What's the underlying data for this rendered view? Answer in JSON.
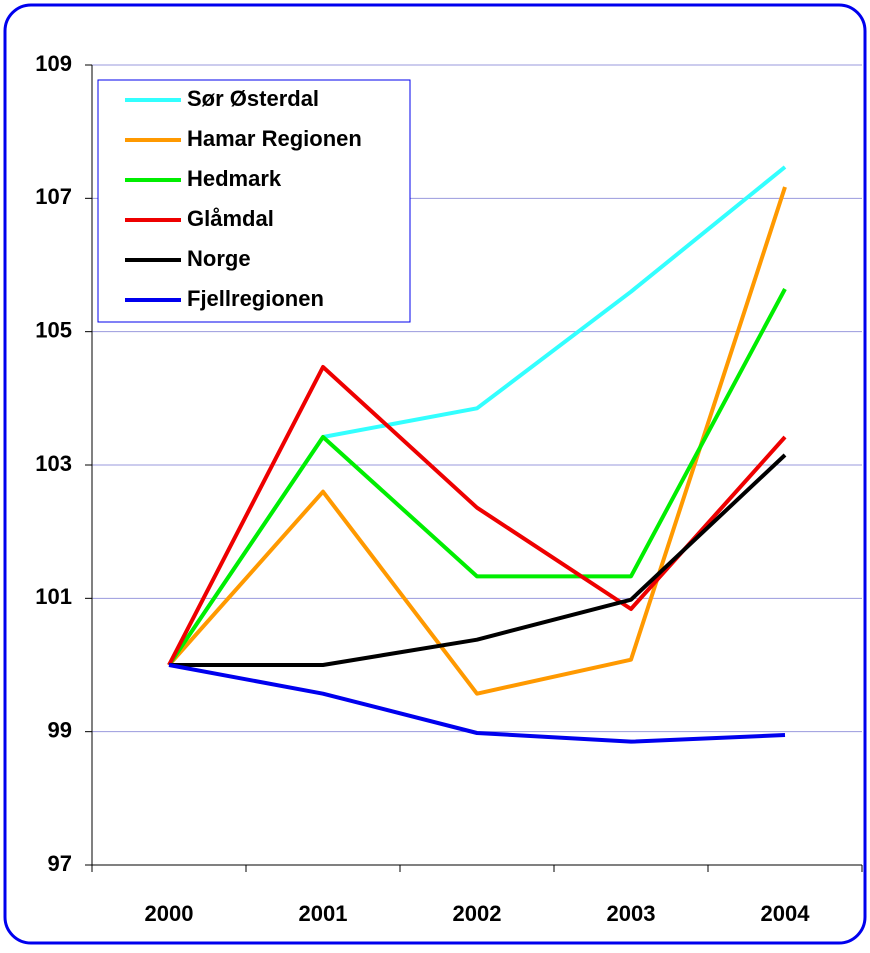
{
  "chart_data": {
    "type": "line",
    "categories": [
      "2000",
      "2001",
      "2002",
      "2003",
      "2004"
    ],
    "series": [
      {
        "name": "Sør Østerdal",
        "color": "#33ffff",
        "values": [
          100,
          103.42,
          103.85,
          105.6,
          107.47
        ]
      },
      {
        "name": "Hamar Regionen",
        "color": "#ff9900",
        "values": [
          100,
          102.6,
          99.57,
          100.08,
          107.17
        ]
      },
      {
        "name": "Hedmark",
        "color": "#00ee00",
        "values": [
          100,
          103.42,
          101.33,
          101.33,
          105.64
        ]
      },
      {
        "name": "Glåmdal",
        "color": "#ee0000",
        "values": [
          100,
          104.47,
          102.36,
          100.84,
          103.42
        ]
      },
      {
        "name": "Norge",
        "color": "#000000",
        "values": [
          100,
          100,
          100.38,
          100.98,
          103.15
        ]
      },
      {
        "name": "Fjellregionen",
        "color": "#0000ee",
        "values": [
          100,
          99.57,
          98.98,
          98.85,
          98.95
        ]
      }
    ],
    "ylim": [
      97,
      109
    ],
    "yticks": [
      97,
      99,
      101,
      103,
      105,
      107,
      109
    ],
    "grid": true,
    "legend": "upper left"
  }
}
